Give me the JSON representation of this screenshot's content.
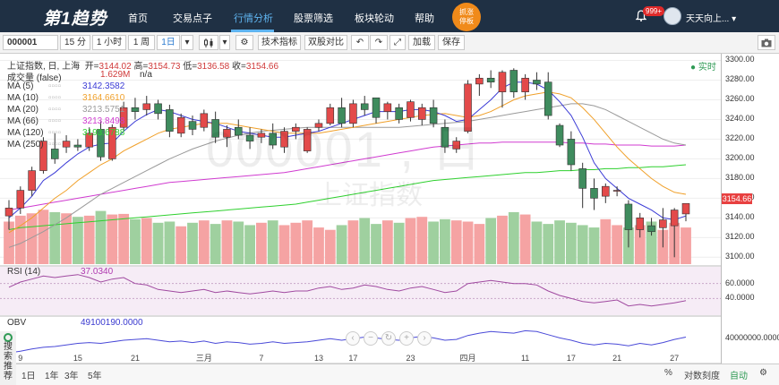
{
  "nav": {
    "logo": "第1趋势",
    "items": [
      "首页",
      "交易点子",
      "行情分析",
      "股票筛选",
      "板块轮动",
      "帮助"
    ],
    "active": 2,
    "promo_line1": "抓涨",
    "promo_line2": "停板",
    "badge": "999+",
    "user": "天天向上..."
  },
  "toolbar": {
    "symbol": "000001",
    "periods": [
      "15 分",
      "1 小时",
      "1 周",
      "1日"
    ],
    "tech_btn": "技术指标",
    "compare_btn": "双股对比",
    "load_btn": "加载",
    "save_btn": "保存"
  },
  "header": {
    "name": "上证指数, 日, 上海",
    "open_label": "开=",
    "open": "3144.02",
    "high_label": "高=",
    "high": "3154.73",
    "low_label": "低=",
    "low": "3136.58",
    "close_label": "收=",
    "close": "3154.66",
    "realtime": "实时",
    "volume_label": "成交量 (false)",
    "volume_value": "1.629M",
    "volume_na": "n/a",
    "ma": [
      {
        "label": "MA (5)",
        "value": "3142.3582",
        "color": "#3b3bd6"
      },
      {
        "label": "MA (10)",
        "value": "3164.6610",
        "color": "#f0a02a"
      },
      {
        "label": "MA (20)",
        "value": "3213.5751",
        "color": "#9a9a9a"
      },
      {
        "label": "MA (66)",
        "value": "3213.8498",
        "color": "#d03bd0"
      },
      {
        "label": "MA (120)",
        "value": "3193.6788",
        "color": "#2ed02e"
      },
      {
        "label": "MA (250)",
        "value": "",
        "color": "#e06060"
      }
    ],
    "rsi_label": "RSI (14)",
    "rsi_value": "37.0340",
    "obv_label": "OBV",
    "obv_value": "49100190.0000"
  },
  "watermark": {
    "code": "000001 , 日",
    "name": "上证指数"
  },
  "yaxis": {
    "price_ticks": [
      "3300.00",
      "3280.00",
      "3260.00",
      "3240.00",
      "3220.00",
      "3200.00",
      "3180.00",
      "3160.00",
      "3140.00",
      "3120.00",
      "3100.00"
    ],
    "rsi_ticks": [
      "60.0000",
      "40.0000"
    ],
    "obv_tick": "40000000.0000",
    "last_price": "3154.66"
  },
  "xaxis": {
    "labels": [
      "9",
      "15",
      "21",
      "三月",
      "7",
      "13",
      "17",
      "23",
      "四月",
      "11",
      "17",
      "21",
      "27"
    ]
  },
  "bottom": {
    "ranges": [
      "1日",
      "1年",
      "3年",
      "5年"
    ],
    "pct": "%",
    "log": "对数刻度",
    "auto": "自动"
  },
  "sidetab": [
    "搜",
    "索",
    "推",
    "荐"
  ],
  "colors": {
    "up": "#e34a4a",
    "down": "#3f8c5e",
    "vol_up": "#f5a3a3",
    "vol_down": "#9fd09f",
    "nav_bg": "#1f3044",
    "active": "#5fb4f0"
  },
  "chart_data": {
    "type": "candlestick",
    "ylim": [
      3093,
      3305
    ],
    "candles": [
      {
        "o": 3142,
        "h": 3158,
        "l": 3128,
        "c": 3150
      },
      {
        "o": 3150,
        "h": 3172,
        "l": 3144,
        "c": 3168
      },
      {
        "o": 3168,
        "h": 3192,
        "l": 3162,
        "c": 3188
      },
      {
        "o": 3188,
        "h": 3222,
        "l": 3185,
        "c": 3218
      },
      {
        "o": 3210,
        "h": 3226,
        "l": 3195,
        "c": 3200
      },
      {
        "o": 3212,
        "h": 3224,
        "l": 3206,
        "c": 3218
      },
      {
        "o": 3214,
        "h": 3220,
        "l": 3208,
        "c": 3212
      },
      {
        "o": 3212,
        "h": 3232,
        "l": 3208,
        "c": 3226
      },
      {
        "o": 3230,
        "h": 3238,
        "l": 3198,
        "c": 3202
      },
      {
        "o": 3200,
        "h": 3235,
        "l": 3198,
        "c": 3232
      },
      {
        "o": 3232,
        "h": 3258,
        "l": 3228,
        "c": 3252
      },
      {
        "o": 3252,
        "h": 3262,
        "l": 3240,
        "c": 3248
      },
      {
        "o": 3250,
        "h": 3264,
        "l": 3244,
        "c": 3256
      },
      {
        "o": 3256,
        "h": 3260,
        "l": 3240,
        "c": 3246
      },
      {
        "o": 3250,
        "h": 3255,
        "l": 3222,
        "c": 3228
      },
      {
        "o": 3226,
        "h": 3246,
        "l": 3222,
        "c": 3242
      },
      {
        "o": 3238,
        "h": 3244,
        "l": 3224,
        "c": 3230
      },
      {
        "o": 3232,
        "h": 3250,
        "l": 3228,
        "c": 3246
      },
      {
        "o": 3240,
        "h": 3248,
        "l": 3216,
        "c": 3222
      },
      {
        "o": 3222,
        "h": 3234,
        "l": 3212,
        "c": 3230
      },
      {
        "o": 3232,
        "h": 3240,
        "l": 3220,
        "c": 3224
      },
      {
        "o": 3224,
        "h": 3232,
        "l": 3210,
        "c": 3218
      },
      {
        "o": 3222,
        "h": 3230,
        "l": 3216,
        "c": 3226
      },
      {
        "o": 3226,
        "h": 3236,
        "l": 3210,
        "c": 3214
      },
      {
        "o": 3212,
        "h": 3232,
        "l": 3206,
        "c": 3228
      },
      {
        "o": 3228,
        "h": 3236,
        "l": 3220,
        "c": 3232
      },
      {
        "o": 3208,
        "h": 3232,
        "l": 3206,
        "c": 3230
      },
      {
        "o": 3232,
        "h": 3240,
        "l": 3228,
        "c": 3236
      },
      {
        "o": 3236,
        "h": 3256,
        "l": 3234,
        "c": 3252
      },
      {
        "o": 3252,
        "h": 3262,
        "l": 3232,
        "c": 3236
      },
      {
        "o": 3236,
        "h": 3260,
        "l": 3232,
        "c": 3256
      },
      {
        "o": 3256,
        "h": 3264,
        "l": 3244,
        "c": 3250
      },
      {
        "o": 3262,
        "h": 3262,
        "l": 3236,
        "c": 3242
      },
      {
        "o": 3248,
        "h": 3258,
        "l": 3240,
        "c": 3256
      },
      {
        "o": 3252,
        "h": 3256,
        "l": 3236,
        "c": 3240
      },
      {
        "o": 3242,
        "h": 3260,
        "l": 3238,
        "c": 3258
      },
      {
        "o": 3240,
        "h": 3256,
        "l": 3234,
        "c": 3252
      },
      {
        "o": 3252,
        "h": 3260,
        "l": 3232,
        "c": 3236
      },
      {
        "o": 3232,
        "h": 3240,
        "l": 3206,
        "c": 3212
      },
      {
        "o": 3210,
        "h": 3222,
        "l": 3206,
        "c": 3218
      },
      {
        "o": 3228,
        "h": 3280,
        "l": 3226,
        "c": 3276
      },
      {
        "o": 3276,
        "h": 3286,
        "l": 3264,
        "c": 3282
      },
      {
        "o": 3282,
        "h": 3290,
        "l": 3272,
        "c": 3278
      },
      {
        "o": 3268,
        "h": 3290,
        "l": 3252,
        "c": 3288
      },
      {
        "o": 3290,
        "h": 3292,
        "l": 3262,
        "c": 3268
      },
      {
        "o": 3268,
        "h": 3286,
        "l": 3260,
        "c": 3282
      },
      {
        "o": 3280,
        "h": 3288,
        "l": 3270,
        "c": 3276
      },
      {
        "o": 3278,
        "h": 3288,
        "l": 3240,
        "c": 3244
      },
      {
        "o": 3234,
        "h": 3236,
        "l": 3212,
        "c": 3214
      },
      {
        "o": 3220,
        "h": 3228,
        "l": 3188,
        "c": 3194
      },
      {
        "o": 3190,
        "h": 3196,
        "l": 3150,
        "c": 3170
      },
      {
        "o": 3170,
        "h": 3180,
        "l": 3148,
        "c": 3160
      },
      {
        "o": 3162,
        "h": 3175,
        "l": 3155,
        "c": 3172
      },
      {
        "o": 3168,
        "h": 3172,
        "l": 3162,
        "c": 3168
      },
      {
        "o": 3154,
        "h": 3158,
        "l": 3110,
        "c": 3128
      },
      {
        "o": 3128,
        "h": 3145,
        "l": 3120,
        "c": 3140
      },
      {
        "o": 3132,
        "h": 3140,
        "l": 3122,
        "c": 3126
      },
      {
        "o": 3130,
        "h": 3150,
        "l": 3110,
        "c": 3138
      },
      {
        "o": 3132,
        "h": 3150,
        "l": 3100,
        "c": 3148
      },
      {
        "o": 3144.02,
        "h": 3154.73,
        "l": 3136.58,
        "c": 3154.66
      }
    ],
    "volume_max": 1.0,
    "volumes": [
      0.72,
      0.82,
      0.86,
      0.92,
      0.88,
      0.86,
      0.8,
      0.82,
      0.9,
      0.84,
      0.85,
      0.76,
      0.78,
      0.7,
      0.72,
      0.64,
      0.7,
      0.74,
      0.68,
      0.74,
      0.72,
      0.66,
      0.7,
      0.74,
      0.66,
      0.7,
      0.74,
      0.62,
      0.58,
      0.66,
      0.74,
      0.78,
      0.68,
      0.74,
      0.7,
      0.78,
      0.8,
      0.72,
      0.76,
      0.74,
      0.72,
      0.68,
      0.78,
      0.82,
      0.88,
      0.84,
      0.72,
      0.68,
      0.74,
      0.7,
      0.66,
      0.62,
      0.76,
      0.66,
      0.62,
      0.66,
      0.72,
      0.58,
      0.7,
      0.62
    ],
    "ma5": [
      3140,
      3150,
      3162,
      3178,
      3186,
      3196,
      3205,
      3212,
      3215,
      3216,
      3228,
      3238,
      3245,
      3250,
      3248,
      3244,
      3240,
      3238,
      3236,
      3232,
      3228,
      3226,
      3224,
      3222,
      3222,
      3224,
      3226,
      3228,
      3232,
      3236,
      3240,
      3244,
      3248,
      3248,
      3248,
      3250,
      3250,
      3248,
      3244,
      3238,
      3240,
      3250,
      3260,
      3272,
      3278,
      3278,
      3276,
      3270,
      3258,
      3244,
      3222,
      3196,
      3180,
      3170,
      3160,
      3154,
      3148,
      3140,
      3138,
      3142
    ],
    "ma10": [
      3125,
      3132,
      3140,
      3150,
      3160,
      3168,
      3178,
      3186,
      3194,
      3200,
      3208,
      3214,
      3220,
      3226,
      3230,
      3232,
      3234,
      3236,
      3236,
      3236,
      3234,
      3232,
      3230,
      3228,
      3226,
      3226,
      3226,
      3226,
      3228,
      3230,
      3232,
      3234,
      3236,
      3238,
      3240,
      3242,
      3244,
      3245,
      3246,
      3244,
      3242,
      3244,
      3248,
      3254,
      3260,
      3264,
      3266,
      3268,
      3266,
      3262,
      3252,
      3240,
      3226,
      3212,
      3200,
      3190,
      3180,
      3172,
      3166,
      3164
    ],
    "ma20": [
      3110,
      3114,
      3120,
      3126,
      3133,
      3140,
      3148,
      3156,
      3164,
      3170,
      3176,
      3182,
      3188,
      3194,
      3200,
      3205,
      3210,
      3214,
      3218,
      3221,
      3224,
      3226,
      3228,
      3229,
      3230,
      3231,
      3232,
      3232,
      3232,
      3232,
      3232,
      3232,
      3232,
      3232,
      3232,
      3233,
      3234,
      3235,
      3236,
      3237,
      3238,
      3240,
      3242,
      3244,
      3246,
      3248,
      3250,
      3252,
      3254,
      3256,
      3256,
      3254,
      3250,
      3244,
      3238,
      3232,
      3226,
      3220,
      3216,
      3214
    ],
    "ma66": [
      3148,
      3150,
      3152,
      3154,
      3156,
      3158,
      3160,
      3162,
      3164,
      3166,
      3168,
      3170,
      3172,
      3174,
      3176,
      3177,
      3178,
      3179,
      3180,
      3181,
      3182,
      3183,
      3184,
      3185,
      3186,
      3188,
      3190,
      3192,
      3194,
      3196,
      3198,
      3200,
      3202,
      3204,
      3206,
      3208,
      3210,
      3212,
      3213,
      3214,
      3215,
      3216,
      3216,
      3217,
      3217,
      3217,
      3217,
      3217,
      3217,
      3216,
      3216,
      3215,
      3215,
      3214,
      3214,
      3214,
      3213,
      3213,
      3213,
      3214
    ],
    "ma120": [
      3128,
      3130,
      3131,
      3132,
      3133,
      3134,
      3135,
      3136,
      3137,
      3138,
      3139,
      3140,
      3141,
      3142,
      3143,
      3144,
      3145,
      3146,
      3147,
      3148,
      3149,
      3150,
      3151,
      3152,
      3153,
      3154,
      3156,
      3158,
      3160,
      3162,
      3164,
      3166,
      3168,
      3170,
      3172,
      3174,
      3176,
      3178,
      3179,
      3180,
      3181,
      3182,
      3183,
      3184,
      3185,
      3186,
      3186,
      3187,
      3188,
      3188,
      3189,
      3189,
      3190,
      3190,
      3191,
      3191,
      3192,
      3192,
      3193,
      3194
    ],
    "rsi": [
      55,
      62,
      66,
      70,
      68,
      70,
      72,
      68,
      62,
      66,
      68,
      60,
      58,
      52,
      50,
      48,
      50,
      52,
      48,
      50,
      48,
      46,
      48,
      50,
      48,
      50,
      50,
      54,
      56,
      52,
      54,
      58,
      56,
      52,
      50,
      54,
      56,
      52,
      48,
      50,
      60,
      62,
      64,
      62,
      60,
      60,
      58,
      50,
      44,
      40,
      36,
      34,
      36,
      38,
      30,
      32,
      30,
      32,
      34,
      37
    ],
    "obv": [
      0.18,
      0.22,
      0.28,
      0.32,
      0.34,
      0.38,
      0.42,
      0.44,
      0.42,
      0.46,
      0.5,
      0.52,
      0.54,
      0.5,
      0.46,
      0.48,
      0.44,
      0.48,
      0.42,
      0.46,
      0.44,
      0.4,
      0.42,
      0.46,
      0.42,
      0.44,
      0.46,
      0.5,
      0.54,
      0.5,
      0.54,
      0.58,
      0.56,
      0.52,
      0.5,
      0.56,
      0.6,
      0.56,
      0.5,
      0.52,
      0.62,
      0.68,
      0.72,
      0.7,
      0.68,
      0.74,
      0.72,
      0.64,
      0.56,
      0.5,
      0.42,
      0.38,
      0.42,
      0.4,
      0.36,
      0.42,
      0.38,
      0.44,
      0.52,
      0.58
    ]
  }
}
